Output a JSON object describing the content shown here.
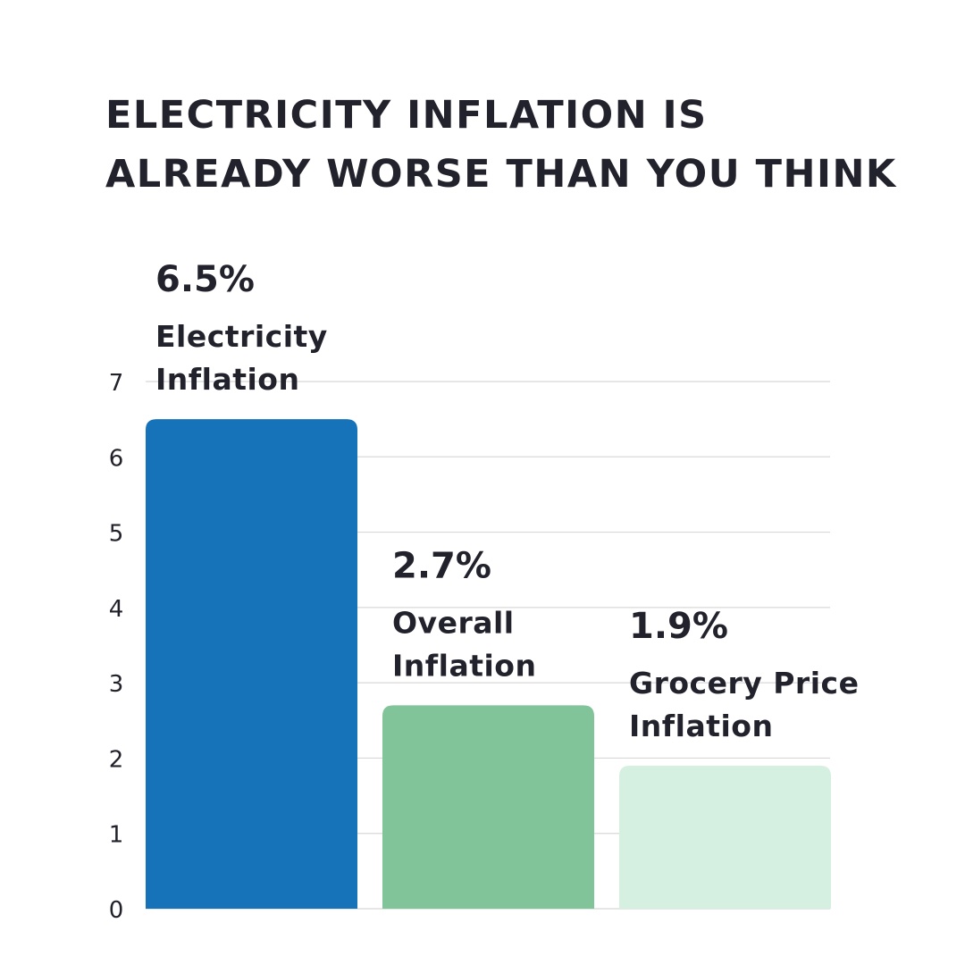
{
  "title": {
    "line1": "ELECTRICITY INFLATION IS",
    "line2": "ALREADY WORSE THAN YOU THINK"
  },
  "chart_data": {
    "type": "bar",
    "title": "ELECTRICITY INFLATION IS ALREADY WORSE THAN YOU THINK",
    "xlabel": "",
    "ylabel": "",
    "ylim": [
      0,
      7
    ],
    "yticks": [
      0,
      1,
      2,
      3,
      4,
      5,
      6,
      7
    ],
    "grid": true,
    "legend": "none",
    "categories": [
      "Electricity Inflation",
      "Overall Inflation",
      "Grocery Price Inflation"
    ],
    "values": [
      6.5,
      2.7,
      1.9
    ],
    "bars": [
      {
        "value": 6.5,
        "value_label": "6.5%",
        "label_lines": [
          "Electricity",
          "Inflation"
        ],
        "color": "#1673ba"
      },
      {
        "value": 2.7,
        "value_label": "2.7%",
        "label_lines": [
          "Overall",
          "Inflation"
        ],
        "color": "#82c49a"
      },
      {
        "value": 1.9,
        "value_label": "1.9%",
        "label_lines": [
          "Grocery Price",
          "Inflation"
        ],
        "color": "#d5f0e1"
      }
    ]
  }
}
